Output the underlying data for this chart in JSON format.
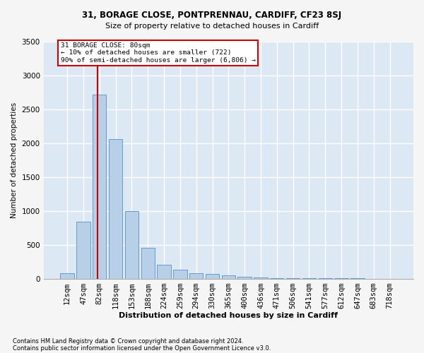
{
  "title1": "31, BORAGE CLOSE, PONTPRENNAU, CARDIFF, CF23 8SJ",
  "title2": "Size of property relative to detached houses in Cardiff",
  "xlabel": "Distribution of detached houses by size in Cardiff",
  "ylabel": "Number of detached properties",
  "categories": [
    "12sqm",
    "47sqm",
    "82sqm",
    "118sqm",
    "153sqm",
    "188sqm",
    "224sqm",
    "259sqm",
    "294sqm",
    "330sqm",
    "365sqm",
    "400sqm",
    "436sqm",
    "471sqm",
    "506sqm",
    "541sqm",
    "577sqm",
    "612sqm",
    "647sqm",
    "683sqm",
    "718sqm"
  ],
  "values": [
    75,
    840,
    2720,
    2060,
    1000,
    450,
    205,
    135,
    80,
    65,
    50,
    25,
    20,
    10,
    8,
    3,
    2,
    1,
    1,
    0,
    0
  ],
  "bar_color": "#b8cfe8",
  "bar_edge_color": "#6699cc",
  "background_color": "#dde8f5",
  "grid_color": "#ffffff",
  "annotation_line1": "31 BORAGE CLOSE: 80sqm",
  "annotation_line2": "← 10% of detached houses are smaller (722)",
  "annotation_line3": "90% of semi-detached houses are larger (6,806) →",
  "annotation_box_color": "#ffffff",
  "annotation_box_edge": "#cc0000",
  "vline_color": "#cc0000",
  "ylim": [
    0,
    3500
  ],
  "yticks": [
    0,
    500,
    1000,
    1500,
    2000,
    2500,
    3000,
    3500
  ],
  "footnote1": "Contains HM Land Registry data © Crown copyright and database right 2024.",
  "footnote2": "Contains public sector information licensed under the Open Government Licence v3.0.",
  "fig_bg": "#f5f5f5"
}
